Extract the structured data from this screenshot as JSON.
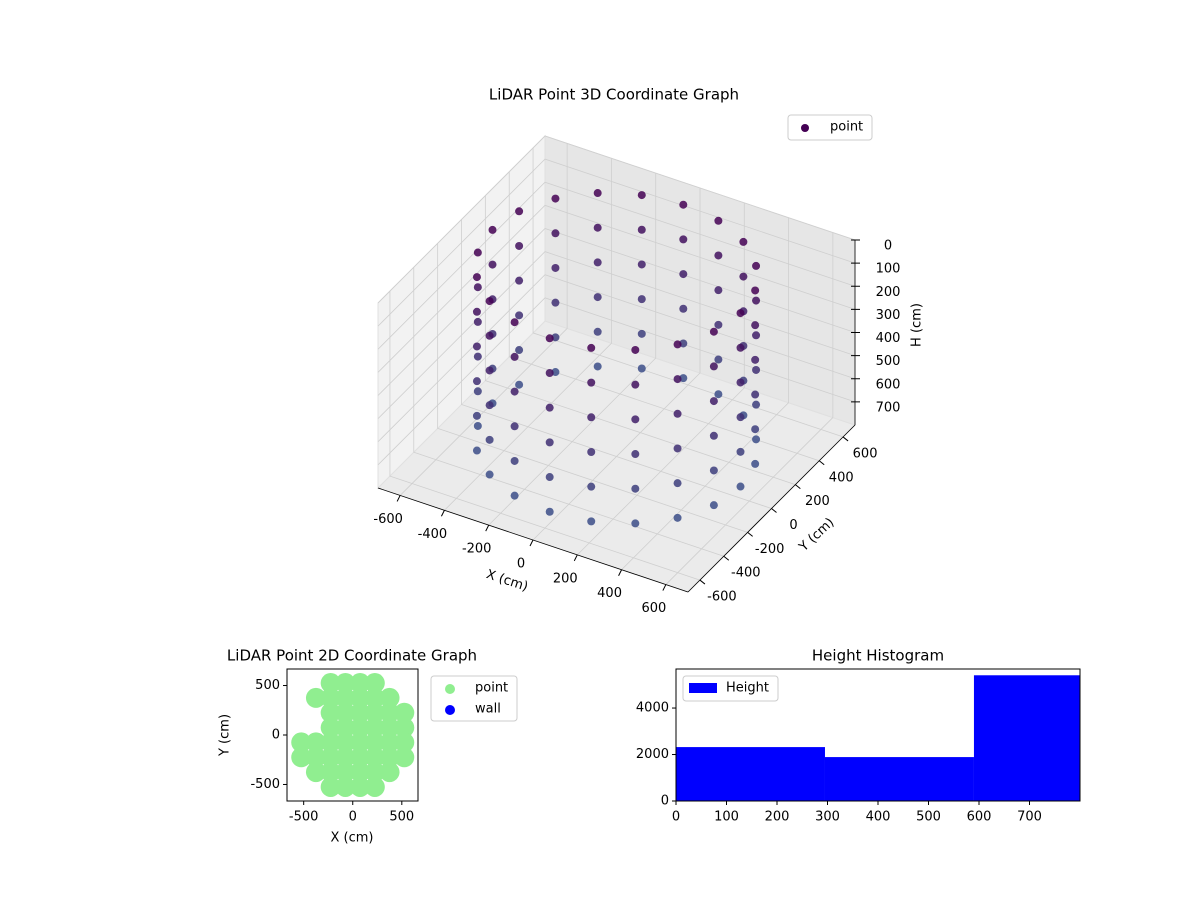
{
  "chart_data": [
    {
      "type": "scatter3d",
      "title": "LiDAR Point 3D Coordinate Graph",
      "xlabel": "X (cm)",
      "ylabel": "Y (cm)",
      "zlabel": "H (cm)",
      "xlim": [
        -700,
        700
      ],
      "ylim": [
        -700,
        700
      ],
      "zlim": [
        800,
        0
      ],
      "xticks": [
        -600,
        -400,
        -200,
        0,
        200,
        400,
        600
      ],
      "yticks": [
        -600,
        -400,
        -200,
        0,
        200,
        400,
        600
      ],
      "zticks": [
        0,
        100,
        200,
        300,
        400,
        500,
        600,
        700
      ],
      "grid": true,
      "legend": "upper right",
      "series": [
        {
          "name": "point",
          "color": "#440154",
          "colormap": [
            "#440154",
            "#3b528b"
          ],
          "x": [
            560,
            533,
            453,
            329,
            173,
            0,
            -173,
            -329,
            -453,
            -533,
            -560,
            -533,
            -453,
            -329,
            -173,
            0,
            173,
            329,
            453,
            533,
            560,
            533,
            453,
            329,
            173,
            0,
            -173,
            -329,
            -453,
            -533,
            -560,
            -533,
            -453,
            -329,
            -173,
            0,
            173,
            329,
            453,
            533,
            560,
            533,
            453,
            329,
            173,
            0,
            -173,
            -329,
            -453,
            -533,
            -560,
            -533,
            -453,
            -329,
            -173,
            0,
            173,
            329,
            453,
            533,
            560,
            533,
            453,
            329,
            173,
            0,
            -173,
            -329,
            -453,
            -533,
            -560,
            -533,
            -453,
            -329,
            -173,
            0,
            173,
            329,
            453,
            533,
            560,
            533,
            453,
            329,
            173,
            0,
            -173,
            -329,
            -453,
            -533,
            -560,
            -533,
            -453,
            -329,
            -173,
            0,
            173,
            329,
            453,
            533,
            560,
            533,
            453,
            329,
            173,
            0,
            -173,
            -329,
            -453,
            -533,
            -560,
            -533,
            -453,
            -329,
            -173,
            0,
            173,
            329,
            453,
            533
          ],
          "y": [
            0,
            173,
            329,
            453,
            533,
            560,
            533,
            453,
            329,
            173,
            0,
            -173,
            -329,
            -453,
            -533,
            -560,
            -533,
            -453,
            -329,
            -173,
            0,
            173,
            329,
            453,
            533,
            560,
            533,
            453,
            329,
            173,
            0,
            -173,
            -329,
            -453,
            -533,
            -560,
            -533,
            -453,
            -329,
            -173,
            0,
            173,
            329,
            453,
            533,
            560,
            533,
            453,
            329,
            173,
            0,
            -173,
            -329,
            -453,
            -533,
            -560,
            -533,
            -453,
            -329,
            -173,
            0,
            173,
            329,
            453,
            533,
            560,
            533,
            453,
            329,
            173,
            0,
            -173,
            -329,
            -453,
            -533,
            -560,
            -533,
            -453,
            -329,
            -173,
            0,
            173,
            329,
            453,
            533,
            560,
            533,
            453,
            329,
            173,
            0,
            -173,
            -329,
            -453,
            -533,
            -560,
            -533,
            -453,
            -329,
            -173,
            0,
            173,
            329,
            453,
            533,
            560,
            533,
            453,
            329,
            173,
            0,
            -173,
            -329,
            -453,
            -533,
            -560,
            -533,
            -453,
            -329,
            -173
          ],
          "z": [
            0,
            0,
            0,
            0,
            0,
            0,
            0,
            0,
            0,
            0,
            0,
            0,
            0,
            0,
            0,
            0,
            0,
            0,
            0,
            0,
            150,
            150,
            150,
            150,
            150,
            150,
            150,
            150,
            150,
            150,
            150,
            150,
            150,
            150,
            150,
            150,
            150,
            150,
            150,
            150,
            300,
            300,
            300,
            300,
            300,
            300,
            300,
            300,
            300,
            300,
            300,
            300,
            300,
            300,
            300,
            300,
            300,
            300,
            300,
            300,
            450,
            450,
            450,
            450,
            450,
            450,
            450,
            450,
            450,
            450,
            450,
            450,
            450,
            450,
            450,
            450,
            450,
            450,
            450,
            450,
            600,
            600,
            600,
            600,
            600,
            600,
            600,
            600,
            600,
            600,
            600,
            600,
            600,
            600,
            600,
            600,
            600,
            600,
            600,
            600,
            750,
            750,
            750,
            750,
            750,
            750,
            750,
            750,
            750,
            750,
            750,
            750,
            750,
            750,
            750,
            750,
            750,
            750,
            750,
            750
          ]
        }
      ]
    },
    {
      "type": "scatter",
      "title": "LiDAR Point 2D Coordinate Graph",
      "xlabel": "X (cm)",
      "ylabel": "Y (cm)",
      "xlim": [
        -670,
        665
      ],
      "ylim": [
        -667,
        667
      ],
      "xticks": [
        -500,
        0,
        500
      ],
      "yticks": [
        -500,
        0,
        500
      ],
      "legend": "outside right",
      "series": [
        {
          "name": "point",
          "color": "#90ee90",
          "x": [
            75,
            75,
            75,
            75,
            225,
            225,
            225,
            225,
            375,
            375,
            375,
            525,
            525,
            -75,
            -75,
            -75,
            -75,
            -225,
            -225,
            -225,
            -225,
            -375,
            75,
            75,
            75,
            75,
            225,
            225,
            225,
            225,
            375,
            375,
            375,
            525,
            525,
            -75,
            -75,
            -75,
            -75,
            -225,
            -225,
            -225,
            -225,
            -375,
            -375,
            -375,
            -525,
            -525
          ],
          "y": [
            75,
            225,
            375,
            525,
            75,
            225,
            375,
            525,
            75,
            225,
            375,
            75,
            225,
            75,
            225,
            375,
            525,
            75,
            225,
            375,
            525,
            375,
            -75,
            -225,
            -375,
            -525,
            -75,
            -225,
            -375,
            -525,
            -75,
            -225,
            -375,
            -75,
            -225,
            -75,
            -225,
            -375,
            -525,
            -75,
            -225,
            -375,
            -525,
            -75,
            -225,
            -375,
            -75,
            -225
          ]
        },
        {
          "name": "wall",
          "color": "#0000ff",
          "x": [],
          "y": []
        }
      ]
    },
    {
      "type": "histogram",
      "title": "Height Histogram",
      "name": "Height",
      "color": "#0000ff",
      "bins": [
        0,
        295,
        590,
        800
      ],
      "values": [
        2320,
        1890,
        5410
      ],
      "xlim": [
        0,
        800
      ],
      "ylim": [
        0,
        5680
      ],
      "xticks": [
        0,
        100,
        200,
        300,
        400,
        500,
        600,
        700
      ],
      "yticks": [
        0,
        2000,
        4000
      ],
      "legend": "upper left"
    }
  ]
}
